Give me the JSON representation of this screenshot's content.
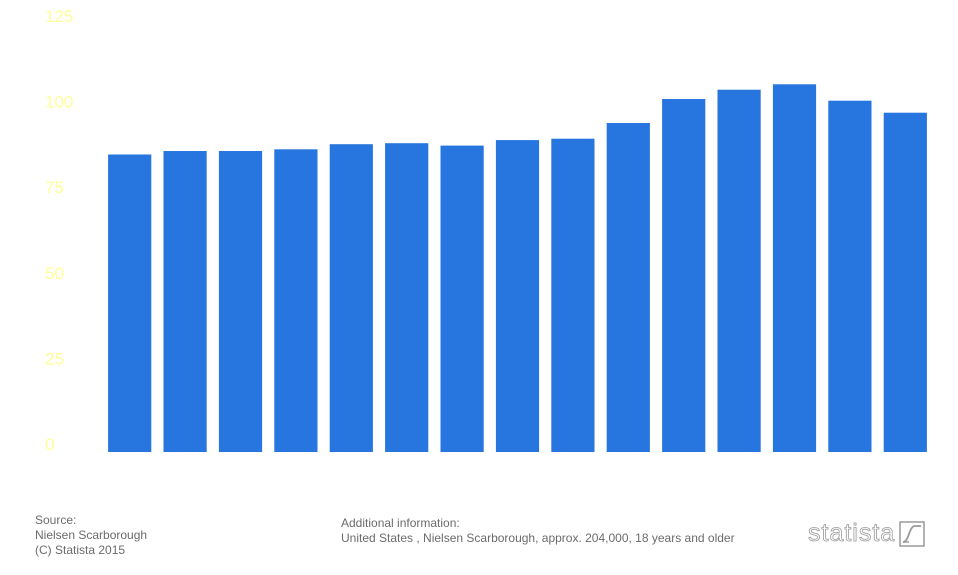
{
  "chart_data": {
    "type": "bar",
    "categories": [
      "",
      "",
      "",
      "",
      "",
      "",
      "",
      "",
      "",
      "",
      "",
      "",
      "",
      "",
      ""
    ],
    "values": [
      86.9,
      87.9,
      87.9,
      88.4,
      89.9,
      90.2,
      89.5,
      91.1,
      91.5,
      96.1,
      103.1,
      105.8,
      107.4,
      102.6,
      99.1
    ],
    "ylim": [
      0,
      125
    ],
    "yticks": [
      0,
      25,
      50,
      75,
      100,
      125
    ],
    "bar_color": "#2775de",
    "tick_color": "#ffff99",
    "grid": false
  },
  "footer": {
    "source_title": "Source:",
    "source_name": "Nielsen Scarborough",
    "copyright": "(C) Statista 2015",
    "info_title": "Additional information:",
    "info_text": "United States , Nielsen Scarborough, approx. 204,000, 18 years and older"
  },
  "brand": {
    "wordmark": "statista",
    "logo_icon": "statista-logo-icon"
  }
}
